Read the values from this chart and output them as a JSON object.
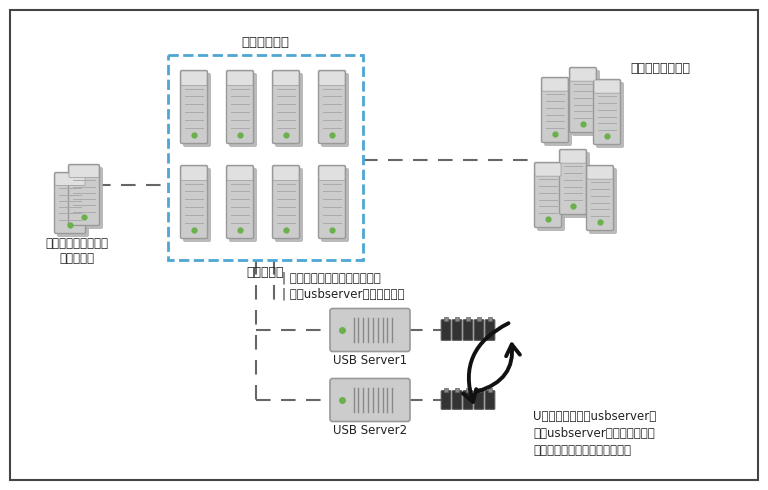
{
  "bg_color": "#ffffff",
  "border_color": "#444444",
  "dash_box_color": "#4da6d4",
  "server_color": "#cccccc",
  "server_stroke": "#999999",
  "green_dot": "#6ab04c",
  "text_color": "#222222",
  "arrow_color": "#111111",
  "label_qianzhiji_xu": "前置机虚拟化",
  "label_wangyinqianzhiji": "网银前置机",
  "label_qiye": "企业应用及银企直联\n系统服务器",
  "label_bank": "各个银行数据中心",
  "label_usb1": "USB Server1",
  "label_usb2": "USB Server2",
  "label_note1": "每个前置机内都分别连接加载",
  "label_note2": "两个usbserver中的不同端口",
  "label_desc1": "U盾分散插在两台usbserver上",
  "label_desc2": "两台usbserver相互备机以应对",
  "label_desc3": "极端情况下不影响重要业务进行",
  "figw": 7.68,
  "figh": 4.9,
  "dpi": 100
}
